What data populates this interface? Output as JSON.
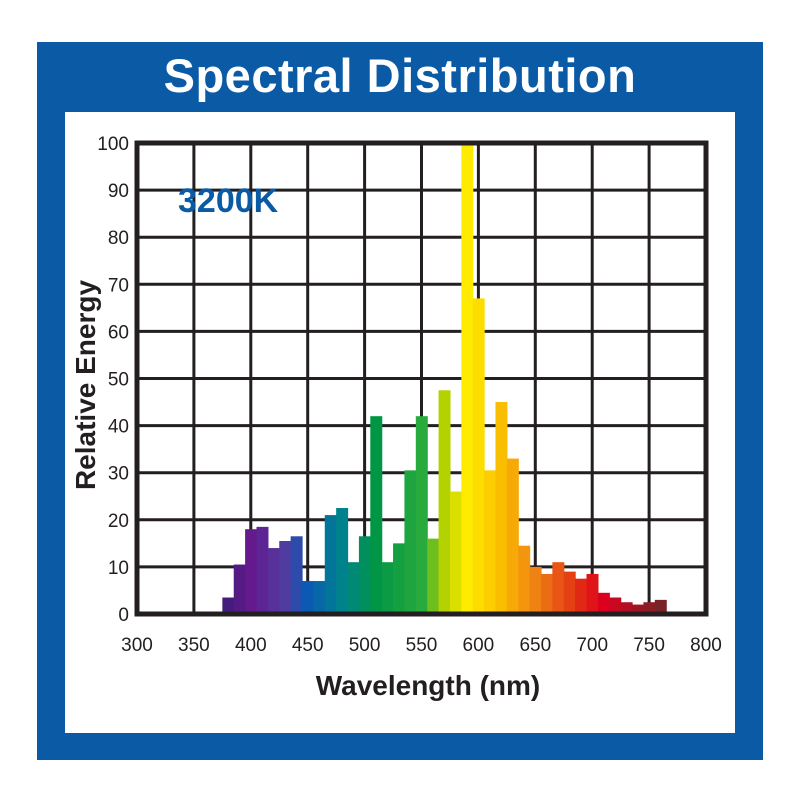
{
  "chart_data": {
    "type": "bar",
    "title": "Spectral Distribution",
    "annotation": "3200K",
    "xlabel": "Wavelength (nm)",
    "ylabel": "Relative Energy",
    "xlim": [
      300,
      800
    ],
    "ylim": [
      0,
      100
    ],
    "grid": true,
    "bin_width": 10,
    "xticks": [
      "300",
      "350",
      "400",
      "450",
      "500",
      "550",
      "600",
      "650",
      "700",
      "750",
      "800"
    ],
    "yticks": [
      "0",
      "10",
      "20",
      "30",
      "40",
      "50",
      "60",
      "70",
      "80",
      "90",
      "100"
    ],
    "x": [
      380,
      390,
      400,
      410,
      420,
      430,
      440,
      450,
      460,
      470,
      480,
      490,
      500,
      510,
      520,
      530,
      540,
      550,
      560,
      570,
      580,
      590,
      600,
      610,
      620,
      630,
      640,
      650,
      660,
      670,
      680,
      690,
      700,
      710,
      720,
      730,
      740,
      750,
      760
    ],
    "values": [
      3.5,
      10.5,
      18,
      18.5,
      14,
      15.5,
      16.5,
      7,
      7,
      21,
      22.5,
      11,
      16.5,
      42,
      11,
      15,
      30.5,
      42,
      16,
      47.5,
      26,
      100,
      67,
      30.5,
      45,
      33,
      14.5,
      10,
      8.5,
      11,
      9,
      7.5,
      8.5,
      4.5,
      3.5,
      2.5,
      2,
      2.5,
      3
    ]
  }
}
